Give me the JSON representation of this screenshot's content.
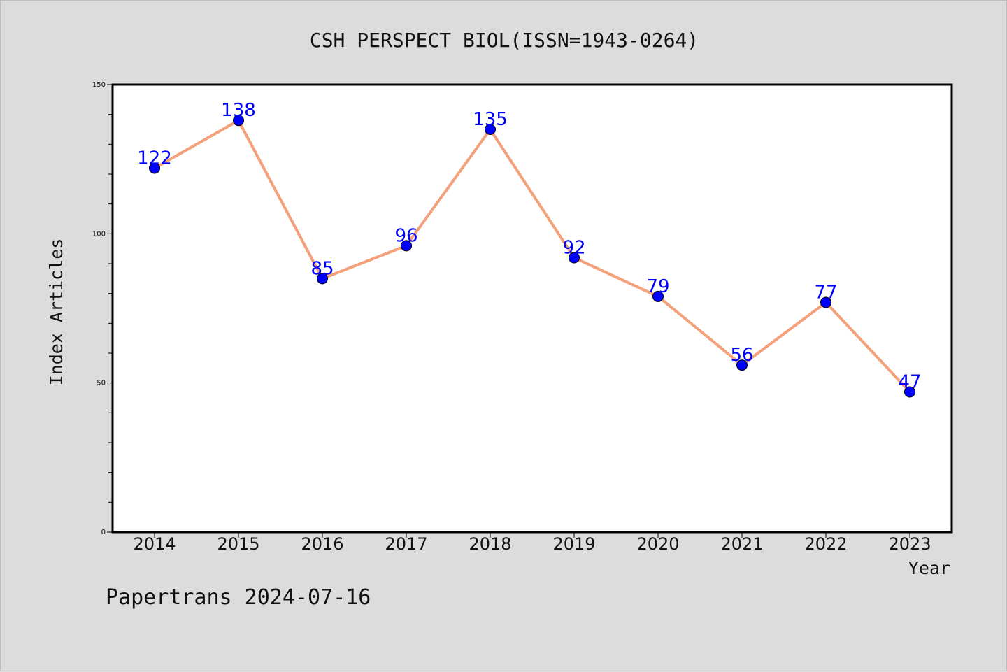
{
  "footer": {
    "credit": "Papertrans 2024-07-16"
  },
  "chart_data": {
    "type": "line",
    "title": "CSH PERSPECT BIOL(ISSN=1943-0264)",
    "xlabel": "Year",
    "ylabel": "Index Articles",
    "categories": [
      "2014",
      "2015",
      "2016",
      "2017",
      "2018",
      "2019",
      "2020",
      "2021",
      "2022",
      "2023"
    ],
    "series": [
      {
        "values": [
          122,
          138,
          85,
          96,
          135,
          92,
          79,
          56,
          77,
          47
        ]
      }
    ],
    "ylim": [
      0,
      150
    ],
    "yticks": [
      0,
      50,
      100,
      150
    ],
    "grid": false,
    "legend": "none",
    "data_labels": true,
    "colors": {
      "line": "#f4a07a",
      "marker": "#0000ff",
      "label": "#0000ff",
      "plot_bg": "#ffffff",
      "page_bg": "#dcdcdc"
    }
  }
}
